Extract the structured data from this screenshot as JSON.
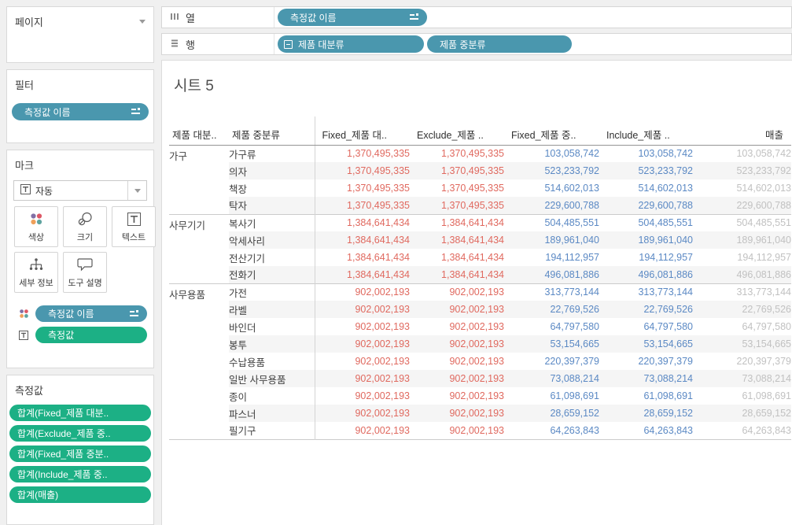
{
  "colors": {
    "pill_blue": "#4a97ae",
    "pill_green": "#1cb085",
    "value_red": "#e0695f",
    "value_blue": "#5b89c4",
    "value_gray": "#c1c1c1",
    "band": "#f5f5f5"
  },
  "sidebar": {
    "pages": {
      "title": "페이지"
    },
    "filters": {
      "title": "필터",
      "pill": "측정값 이름"
    },
    "marks": {
      "title": "마크",
      "mark_type": "자동",
      "buttons": [
        {
          "label": "색상"
        },
        {
          "label": "크기"
        },
        {
          "label": "텍스트"
        },
        {
          "label": "세부 정보"
        },
        {
          "label": "도구 설명"
        }
      ],
      "pills": [
        {
          "label": "측정값 이름"
        },
        {
          "label": "측정값"
        }
      ]
    },
    "measure_values": {
      "title": "측정값",
      "pills": [
        "합계(Fixed_제품 대분..",
        "합계(Exclude_제품 중..",
        "합계(Fixed_제품 중분..",
        "합계(Include_제품 중..",
        "합계(매출)"
      ]
    }
  },
  "shelves": {
    "columns": {
      "label": "열",
      "pills": [
        {
          "label": "측정값 이름"
        }
      ]
    },
    "rows": {
      "label": "행",
      "pills": [
        {
          "label": "제품 대분류"
        },
        {
          "label": "제품 중분류"
        }
      ]
    }
  },
  "sheet": {
    "title": "시트 5",
    "table": {
      "dim_headers": [
        "제품 대분..",
        "제품 중분류"
      ],
      "measure_headers": [
        "Fixed_제품 대..",
        "Exclude_제품 ..",
        "Fixed_제품 중..",
        "Include_제품 ..",
        "매출"
      ],
      "column_color_keys": [
        "value_red",
        "value_red",
        "value_blue",
        "value_blue",
        "value_gray"
      ],
      "groups": [
        {
          "category": "가구",
          "rows": [
            {
              "sub": "가구류",
              "values": [
                "1,370,495,335",
                "1,370,495,335",
                "103,058,742",
                "103,058,742",
                "103,058,742"
              ]
            },
            {
              "sub": "의자",
              "values": [
                "1,370,495,335",
                "1,370,495,335",
                "523,233,792",
                "523,233,792",
                "523,233,792"
              ]
            },
            {
              "sub": "책장",
              "values": [
                "1,370,495,335",
                "1,370,495,335",
                "514,602,013",
                "514,602,013",
                "514,602,013"
              ]
            },
            {
              "sub": "탁자",
              "values": [
                "1,370,495,335",
                "1,370,495,335",
                "229,600,788",
                "229,600,788",
                "229,600,788"
              ]
            }
          ]
        },
        {
          "category": "사무기기",
          "rows": [
            {
              "sub": "복사기",
              "values": [
                "1,384,641,434",
                "1,384,641,434",
                "504,485,551",
                "504,485,551",
                "504,485,551"
              ]
            },
            {
              "sub": "악세사리",
              "values": [
                "1,384,641,434",
                "1,384,641,434",
                "189,961,040",
                "189,961,040",
                "189,961,040"
              ]
            },
            {
              "sub": "전산기기",
              "values": [
                "1,384,641,434",
                "1,384,641,434",
                "194,112,957",
                "194,112,957",
                "194,112,957"
              ]
            },
            {
              "sub": "전화기",
              "values": [
                "1,384,641,434",
                "1,384,641,434",
                "496,081,886",
                "496,081,886",
                "496,081,886"
              ]
            }
          ]
        },
        {
          "category": "사무용품",
          "rows": [
            {
              "sub": "가전",
              "values": [
                "902,002,193",
                "902,002,193",
                "313,773,144",
                "313,773,144",
                "313,773,144"
              ]
            },
            {
              "sub": "라벨",
              "values": [
                "902,002,193",
                "902,002,193",
                "22,769,526",
                "22,769,526",
                "22,769,526"
              ]
            },
            {
              "sub": "바인더",
              "values": [
                "902,002,193",
                "902,002,193",
                "64,797,580",
                "64,797,580",
                "64,797,580"
              ]
            },
            {
              "sub": "봉투",
              "values": [
                "902,002,193",
                "902,002,193",
                "53,154,665",
                "53,154,665",
                "53,154,665"
              ]
            },
            {
              "sub": "수납용품",
              "values": [
                "902,002,193",
                "902,002,193",
                "220,397,379",
                "220,397,379",
                "220,397,379"
              ]
            },
            {
              "sub": "일반 사무용품",
              "values": [
                "902,002,193",
                "902,002,193",
                "73,088,214",
                "73,088,214",
                "73,088,214"
              ]
            },
            {
              "sub": "종이",
              "values": [
                "902,002,193",
                "902,002,193",
                "61,098,691",
                "61,098,691",
                "61,098,691"
              ]
            },
            {
              "sub": "파스너",
              "values": [
                "902,002,193",
                "902,002,193",
                "28,659,152",
                "28,659,152",
                "28,659,152"
              ]
            },
            {
              "sub": "필기구",
              "values": [
                "902,002,193",
                "902,002,193",
                "64,263,843",
                "64,263,843",
                "64,263,843"
              ]
            }
          ]
        }
      ]
    }
  }
}
